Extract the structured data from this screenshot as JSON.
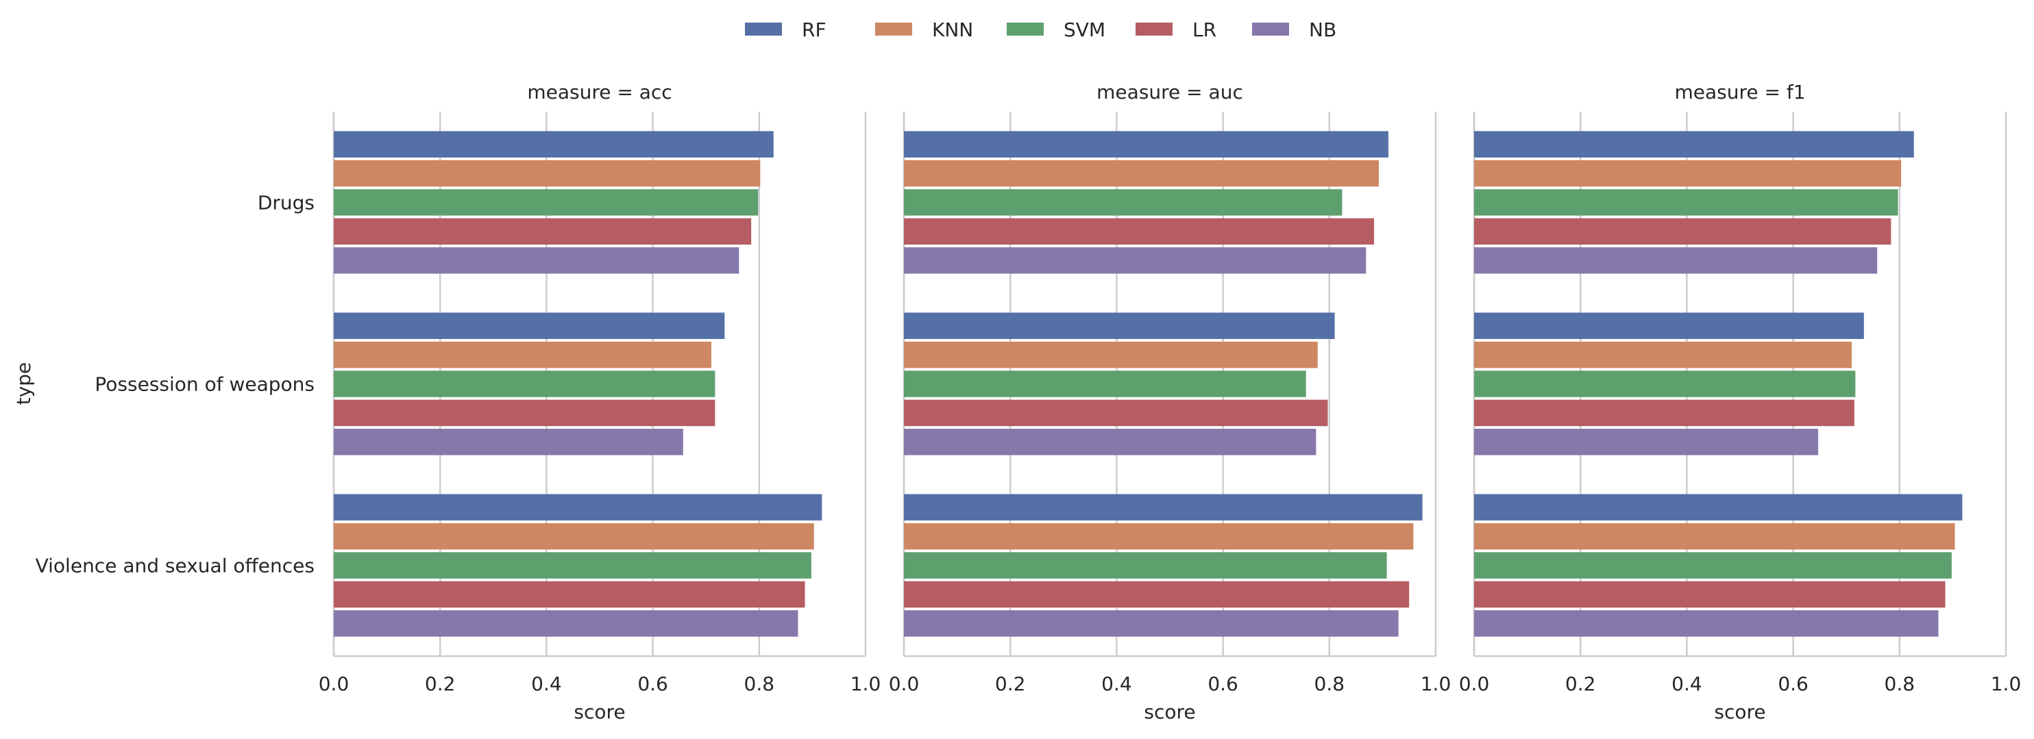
{
  "chart_data": {
    "type": "bar",
    "orientation": "horizontal",
    "legend_position": "top-center",
    "grid": true,
    "ylabel": "type",
    "categories": [
      "Drugs",
      "Possession of weapons",
      "Violence and sexual offences"
    ],
    "xticks": [
      "0.0",
      "0.2",
      "0.4",
      "0.6",
      "0.8",
      "1.0"
    ],
    "series_names": [
      "RF",
      "KNN",
      "SVM",
      "LR",
      "NB"
    ],
    "colors": {
      "RF": "#5470a6",
      "KNN": "#cd8763",
      "SVM": "#5e9f6e",
      "LR": "#b55d63",
      "NB": "#8678ab"
    },
    "panels": [
      {
        "title": "measure = acc",
        "xlabel": "score",
        "xlim": [
          0,
          1
        ],
        "series": [
          {
            "name": "RF",
            "values": [
              0.827,
              0.735,
              0.918
            ]
          },
          {
            "name": "KNN",
            "values": [
              0.802,
              0.71,
              0.903
            ]
          },
          {
            "name": "SVM",
            "values": [
              0.798,
              0.717,
              0.898
            ]
          },
          {
            "name": "LR",
            "values": [
              0.785,
              0.717,
              0.886
            ]
          },
          {
            "name": "NB",
            "values": [
              0.762,
              0.657,
              0.873
            ]
          }
        ]
      },
      {
        "title": "measure = auc",
        "xlabel": "score",
        "xlim": [
          0,
          1
        ],
        "series": [
          {
            "name": "RF",
            "values": [
              0.911,
              0.81,
              0.975
            ]
          },
          {
            "name": "KNN",
            "values": [
              0.893,
              0.778,
              0.958
            ]
          },
          {
            "name": "SVM",
            "values": [
              0.824,
              0.756,
              0.908
            ]
          },
          {
            "name": "LR",
            "values": [
              0.884,
              0.797,
              0.95
            ]
          },
          {
            "name": "NB",
            "values": [
              0.869,
              0.775,
              0.93
            ]
          }
        ]
      },
      {
        "title": "measure = f1",
        "xlabel": "score",
        "xlim": [
          0,
          1
        ],
        "series": [
          {
            "name": "RF",
            "values": [
              0.827,
              0.733,
              0.918
            ]
          },
          {
            "name": "KNN",
            "values": [
              0.803,
              0.71,
              0.904
            ]
          },
          {
            "name": "SVM",
            "values": [
              0.797,
              0.717,
              0.898
            ]
          },
          {
            "name": "LR",
            "values": [
              0.784,
              0.715,
              0.886
            ]
          },
          {
            "name": "NB",
            "values": [
              0.758,
              0.647,
              0.873
            ]
          }
        ]
      }
    ]
  }
}
